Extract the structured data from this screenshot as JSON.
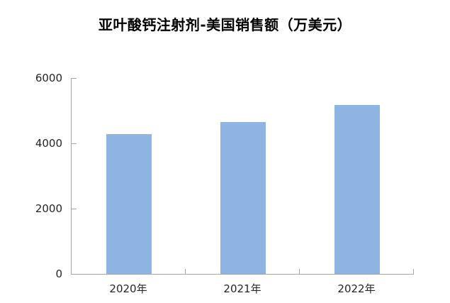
{
  "chart_data": {
    "type": "bar",
    "title": "亚叶酸钙注射剂-美国销售额（万美元）",
    "categories": [
      "2020年",
      "2021年",
      "2022年"
    ],
    "values": [
      4280,
      4660,
      5180
    ],
    "xlabel": "",
    "ylabel": "",
    "ylim": [
      0,
      6000
    ],
    "yticks": [
      0,
      2000,
      4000,
      6000
    ],
    "grid": false,
    "legend": false,
    "colors": {
      "bar": "#8DB4E2",
      "axis": "#A6A6A6",
      "text": "#262626",
      "title": "#000000"
    }
  }
}
